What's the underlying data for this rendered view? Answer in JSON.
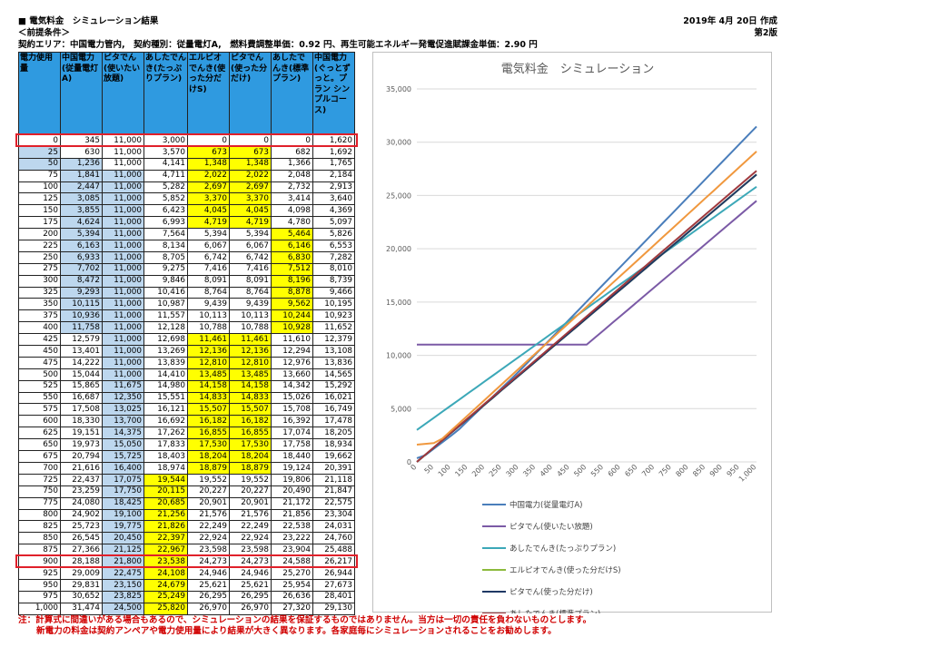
{
  "header": {
    "title": "■ 電気料金　シミュレーション結果",
    "date": "2019年 4月 20日 作成",
    "conditions_label": "＜前提条件＞",
    "version": "第2版",
    "contract": "契約エリア：中国電力管内,　契約種別：従量電灯A,　燃料費調整単価：0.92 円、再生可能エネルギー発電促進賦課金単価：2.90 円"
  },
  "table": {
    "headers": [
      "電力使用量",
      "中国電力(従量電灯A)",
      "ピタでん(使いたい放題)",
      "あしたでんき(たっぷりプラン)",
      "エルピオでんき(使った分だけS)",
      "ピタでん(使った分だけ)",
      "あしたでんき(標準プラン)",
      "中国電力(ぐっとずっと。プラン シンプルコース)"
    ],
    "rows": [
      [
        "0",
        "345",
        "11,000",
        "3,000",
        "0",
        "0",
        "0",
        "1,620"
      ],
      [
        "25",
        "630",
        "11,000",
        "3,570",
        "673",
        "673",
        "682",
        "1,692"
      ],
      [
        "50",
        "1,236",
        "11,000",
        "4,141",
        "1,348",
        "1,348",
        "1,366",
        "1,765"
      ],
      [
        "75",
        "1,841",
        "11,000",
        "4,711",
        "2,022",
        "2,022",
        "2,048",
        "2,184"
      ],
      [
        "100",
        "2,447",
        "11,000",
        "5,282",
        "2,697",
        "2,697",
        "2,732",
        "2,913"
      ],
      [
        "125",
        "3,085",
        "11,000",
        "5,852",
        "3,370",
        "3,370",
        "3,414",
        "3,640"
      ],
      [
        "150",
        "3,855",
        "11,000",
        "6,423",
        "4,045",
        "4,045",
        "4,098",
        "4,369"
      ],
      [
        "175",
        "4,624",
        "11,000",
        "6,993",
        "4,719",
        "4,719",
        "4,780",
        "5,097"
      ],
      [
        "200",
        "5,394",
        "11,000",
        "7,564",
        "5,394",
        "5,394",
        "5,464",
        "5,826"
      ],
      [
        "225",
        "6,163",
        "11,000",
        "8,134",
        "6,067",
        "6,067",
        "6,146",
        "6,553"
      ],
      [
        "250",
        "6,933",
        "11,000",
        "8,705",
        "6,742",
        "6,742",
        "6,830",
        "7,282"
      ],
      [
        "275",
        "7,702",
        "11,000",
        "9,275",
        "7,416",
        "7,416",
        "7,512",
        "8,010"
      ],
      [
        "300",
        "8,472",
        "11,000",
        "9,846",
        "8,091",
        "8,091",
        "8,196",
        "8,739"
      ],
      [
        "325",
        "9,293",
        "11,000",
        "10,416",
        "8,764",
        "8,764",
        "8,878",
        "9,466"
      ],
      [
        "350",
        "10,115",
        "11,000",
        "10,987",
        "9,439",
        "9,439",
        "9,562",
        "10,195"
      ],
      [
        "375",
        "10,936",
        "11,000",
        "11,557",
        "10,113",
        "10,113",
        "10,244",
        "10,923"
      ],
      [
        "400",
        "11,758",
        "11,000",
        "12,128",
        "10,788",
        "10,788",
        "10,928",
        "11,652"
      ],
      [
        "425",
        "12,579",
        "11,000",
        "12,698",
        "11,461",
        "11,461",
        "11,610",
        "12,379"
      ],
      [
        "450",
        "13,401",
        "11,000",
        "13,269",
        "12,136",
        "12,136",
        "12,294",
        "13,108"
      ],
      [
        "475",
        "14,222",
        "11,000",
        "13,839",
        "12,810",
        "12,810",
        "12,976",
        "13,836"
      ],
      [
        "500",
        "15,044",
        "11,000",
        "14,410",
        "13,485",
        "13,485",
        "13,660",
        "14,565"
      ],
      [
        "525",
        "15,865",
        "11,675",
        "14,980",
        "14,158",
        "14,158",
        "14,342",
        "15,292"
      ],
      [
        "550",
        "16,687",
        "12,350",
        "15,551",
        "14,833",
        "14,833",
        "15,026",
        "16,021"
      ],
      [
        "575",
        "17,508",
        "13,025",
        "16,121",
        "15,507",
        "15,507",
        "15,708",
        "16,749"
      ],
      [
        "600",
        "18,330",
        "13,700",
        "16,692",
        "16,182",
        "16,182",
        "16,392",
        "17,478"
      ],
      [
        "625",
        "19,151",
        "14,375",
        "17,262",
        "16,855",
        "16,855",
        "17,074",
        "18,205"
      ],
      [
        "650",
        "19,973",
        "15,050",
        "17,833",
        "17,530",
        "17,530",
        "17,758",
        "18,934"
      ],
      [
        "675",
        "20,794",
        "15,725",
        "18,403",
        "18,204",
        "18,204",
        "18,440",
        "19,662"
      ],
      [
        "700",
        "21,616",
        "16,400",
        "18,974",
        "18,879",
        "18,879",
        "19,124",
        "20,391"
      ],
      [
        "725",
        "22,437",
        "17,075",
        "19,544",
        "19,552",
        "19,552",
        "19,806",
        "21,118"
      ],
      [
        "750",
        "23,259",
        "17,750",
        "20,115",
        "20,227",
        "20,227",
        "20,490",
        "21,847"
      ],
      [
        "775",
        "24,080",
        "18,425",
        "20,685",
        "20,901",
        "20,901",
        "21,172",
        "22,575"
      ],
      [
        "800",
        "24,902",
        "19,100",
        "21,256",
        "21,576",
        "21,576",
        "21,856",
        "23,304"
      ],
      [
        "825",
        "25,723",
        "19,775",
        "21,826",
        "22,249",
        "22,249",
        "22,538",
        "24,031"
      ],
      [
        "850",
        "26,545",
        "20,450",
        "22,397",
        "22,924",
        "22,924",
        "23,222",
        "24,760"
      ],
      [
        "875",
        "27,366",
        "21,125",
        "22,967",
        "23,598",
        "23,598",
        "23,904",
        "25,488"
      ],
      [
        "900",
        "28,188",
        "21,800",
        "23,538",
        "24,273",
        "24,273",
        "24,588",
        "26,217"
      ],
      [
        "925",
        "29,009",
        "22,475",
        "24,108",
        "24,946",
        "24,946",
        "25,270",
        "26,944"
      ],
      [
        "950",
        "29,831",
        "23,150",
        "24,679",
        "25,621",
        "25,621",
        "25,954",
        "27,673"
      ],
      [
        "975",
        "30,652",
        "23,825",
        "25,249",
        "26,295",
        "26,295",
        "26,636",
        "28,401"
      ],
      [
        "1,000",
        "31,474",
        "24,500",
        "25,820",
        "26,970",
        "26,970",
        "27,320",
        "29,130"
      ]
    ],
    "highlight": {
      "blue": [
        [
          1,
          0
        ],
        [
          2,
          0
        ],
        [
          2,
          1
        ],
        [
          3,
          1
        ],
        [
          3,
          2
        ],
        [
          4,
          1
        ],
        [
          4,
          2
        ],
        [
          5,
          1
        ],
        [
          5,
          2
        ],
        [
          6,
          1
        ],
        [
          6,
          2
        ],
        [
          7,
          1
        ],
        [
          7,
          2
        ],
        [
          8,
          1
        ],
        [
          8,
          2
        ],
        [
          9,
          1
        ],
        [
          9,
          2
        ],
        [
          10,
          1
        ],
        [
          10,
          2
        ],
        [
          11,
          1
        ],
        [
          11,
          2
        ],
        [
          12,
          1
        ],
        [
          12,
          2
        ],
        [
          13,
          1
        ],
        [
          13,
          2
        ],
        [
          14,
          1
        ],
        [
          14,
          2
        ],
        [
          15,
          1
        ],
        [
          15,
          2
        ],
        [
          16,
          1
        ],
        [
          16,
          2
        ],
        [
          17,
          2
        ],
        [
          18,
          2
        ],
        [
          19,
          2
        ],
        [
          20,
          2
        ],
        [
          21,
          2
        ],
        [
          22,
          2
        ],
        [
          23,
          2
        ],
        [
          24,
          2
        ],
        [
          25,
          2
        ],
        [
          26,
          2
        ],
        [
          27,
          2
        ],
        [
          28,
          2
        ],
        [
          29,
          2
        ],
        [
          30,
          2
        ],
        [
          31,
          2
        ],
        [
          32,
          2
        ],
        [
          33,
          2
        ],
        [
          34,
          2
        ],
        [
          35,
          2
        ],
        [
          36,
          2
        ],
        [
          37,
          2
        ],
        [
          38,
          2
        ],
        [
          39,
          2
        ],
        [
          40,
          2
        ]
      ],
      "yellow": [
        [
          1,
          4
        ],
        [
          1,
          5
        ],
        [
          2,
          4
        ],
        [
          2,
          5
        ],
        [
          3,
          4
        ],
        [
          3,
          5
        ],
        [
          4,
          4
        ],
        [
          4,
          5
        ],
        [
          5,
          4
        ],
        [
          5,
          5
        ],
        [
          6,
          4
        ],
        [
          6,
          5
        ],
        [
          7,
          4
        ],
        [
          7,
          5
        ],
        [
          8,
          6
        ],
        [
          9,
          6
        ],
        [
          10,
          6
        ],
        [
          11,
          6
        ],
        [
          12,
          6
        ],
        [
          13,
          6
        ],
        [
          14,
          6
        ],
        [
          15,
          6
        ],
        [
          16,
          6
        ],
        [
          17,
          4
        ],
        [
          17,
          5
        ],
        [
          18,
          4
        ],
        [
          18,
          5
        ],
        [
          19,
          4
        ],
        [
          19,
          5
        ],
        [
          20,
          4
        ],
        [
          20,
          5
        ],
        [
          21,
          4
        ],
        [
          21,
          5
        ],
        [
          22,
          4
        ],
        [
          22,
          5
        ],
        [
          23,
          4
        ],
        [
          23,
          5
        ],
        [
          24,
          4
        ],
        [
          24,
          5
        ],
        [
          25,
          4
        ],
        [
          25,
          5
        ],
        [
          26,
          4
        ],
        [
          26,
          5
        ],
        [
          27,
          4
        ],
        [
          27,
          5
        ],
        [
          28,
          4
        ],
        [
          28,
          5
        ],
        [
          29,
          3
        ],
        [
          30,
          3
        ],
        [
          31,
          3
        ],
        [
          32,
          3
        ],
        [
          33,
          3
        ],
        [
          34,
          3
        ],
        [
          35,
          3
        ],
        [
          36,
          3
        ],
        [
          37,
          3
        ],
        [
          38,
          3
        ],
        [
          39,
          3
        ],
        [
          40,
          3
        ]
      ],
      "red_rows": [
        0,
        36
      ]
    }
  },
  "chart_data": {
    "type": "line",
    "title": "電気料金　シミュレーション",
    "xlabel": "",
    "ylabel": "",
    "x": [
      0,
      25,
      50,
      75,
      100,
      125,
      150,
      175,
      200,
      225,
      250,
      275,
      300,
      325,
      350,
      375,
      400,
      425,
      450,
      475,
      500,
      525,
      550,
      575,
      600,
      625,
      650,
      675,
      700,
      725,
      750,
      775,
      800,
      825,
      850,
      875,
      900,
      925,
      950,
      975,
      1000
    ],
    "xticks": [
      "0",
      "50",
      "100",
      "150",
      "200",
      "250",
      "300",
      "350",
      "400",
      "450",
      "500",
      "550",
      "600",
      "650",
      "700",
      "750",
      "800",
      "850",
      "900",
      "950",
      "1,000"
    ],
    "xtick_values": [
      0,
      50,
      100,
      150,
      200,
      250,
      300,
      350,
      400,
      450,
      500,
      550,
      600,
      650,
      700,
      750,
      800,
      850,
      900,
      950,
      1000
    ],
    "ylim": [
      0,
      35000
    ],
    "yticks": [
      "0",
      "5,000",
      "10,000",
      "15,000",
      "20,000",
      "25,000",
      "30,000",
      "35,000"
    ],
    "ytick_values": [
      0,
      5000,
      10000,
      15000,
      20000,
      25000,
      30000,
      35000
    ],
    "legend_position": "bottom",
    "series": [
      {
        "name": "中国電力(従量電灯A)",
        "color": "#4a7ebb",
        "values": [
          345,
          630,
          1236,
          1841,
          2447,
          3085,
          3855,
          4624,
          5394,
          6163,
          6933,
          7702,
          8472,
          9293,
          10115,
          10936,
          11758,
          12579,
          13401,
          14222,
          15044,
          15865,
          16687,
          17508,
          18330,
          19151,
          19973,
          20794,
          21616,
          22437,
          23259,
          24080,
          24902,
          25723,
          26545,
          27366,
          28188,
          29009,
          29831,
          30652,
          31474
        ]
      },
      {
        "name": "ピタでん(使いたい放題)",
        "color": "#7b5aa6",
        "values": [
          11000,
          11000,
          11000,
          11000,
          11000,
          11000,
          11000,
          11000,
          11000,
          11000,
          11000,
          11000,
          11000,
          11000,
          11000,
          11000,
          11000,
          11000,
          11000,
          11000,
          11000,
          11675,
          12350,
          13025,
          13700,
          14375,
          15050,
          15725,
          16400,
          17075,
          17750,
          18425,
          19100,
          19775,
          20450,
          21125,
          21800,
          22475,
          23150,
          23825,
          24500
        ]
      },
      {
        "name": "あしたでんき(たっぷりプラン)",
        "color": "#3ca8b8",
        "values": [
          3000,
          3570,
          4141,
          4711,
          5282,
          5852,
          6423,
          6993,
          7564,
          8134,
          8705,
          9275,
          9846,
          10416,
          10987,
          11557,
          12128,
          12698,
          13269,
          13839,
          14410,
          14980,
          15551,
          16121,
          16692,
          17262,
          17833,
          18403,
          18974,
          19544,
          20115,
          20685,
          21256,
          21826,
          22397,
          22967,
          23538,
          24108,
          24679,
          25249,
          25820
        ]
      },
      {
        "name": "エルピオでんき(使った分だけS)",
        "color": "#8cba3c",
        "values": [
          0,
          673,
          1348,
          2022,
          2697,
          3370,
          4045,
          4719,
          5394,
          6067,
          6742,
          7416,
          8091,
          8764,
          9439,
          10113,
          10788,
          11461,
          12136,
          12810,
          13485,
          14158,
          14833,
          15507,
          16182,
          16855,
          17530,
          18204,
          18879,
          19552,
          20227,
          20901,
          21576,
          22249,
          22924,
          23598,
          24273,
          24946,
          25621,
          26295,
          26970
        ]
      },
      {
        "name": "ピタでん(使った分だけ)",
        "color": "#1f3864",
        "values": [
          0,
          673,
          1348,
          2022,
          2697,
          3370,
          4045,
          4719,
          5394,
          6067,
          6742,
          7416,
          8091,
          8764,
          9439,
          10113,
          10788,
          11461,
          12136,
          12810,
          13485,
          14158,
          14833,
          15507,
          16182,
          16855,
          17530,
          18204,
          18879,
          19552,
          20227,
          20901,
          21576,
          22249,
          22924,
          23598,
          24273,
          24946,
          25621,
          26295,
          26970
        ]
      },
      {
        "name": "あしたでんき(標準プラン)",
        "color": "#a0393e",
        "values": [
          0,
          682,
          1366,
          2048,
          2732,
          3414,
          4098,
          4780,
          5464,
          6146,
          6830,
          7512,
          8196,
          8878,
          9562,
          10244,
          10928,
          11610,
          12294,
          12976,
          13660,
          14342,
          15026,
          15708,
          16392,
          17074,
          17758,
          18440,
          19124,
          19806,
          20490,
          21172,
          21856,
          22538,
          23222,
          23904,
          24588,
          25270,
          25954,
          26636,
          27320
        ]
      },
      {
        "name": "中国電力(ぐっとずっと。プラン シンプルコース)",
        "color": "#f0983e",
        "values": [
          1620,
          1692,
          1765,
          2184,
          2913,
          3640,
          4369,
          5097,
          5826,
          6553,
          7282,
          8010,
          8739,
          9466,
          10195,
          10923,
          11652,
          12379,
          13108,
          13836,
          14565,
          15292,
          16021,
          16749,
          17478,
          18205,
          18934,
          19662,
          20391,
          21118,
          21847,
          22575,
          23304,
          24031,
          24760,
          25488,
          26217,
          26944,
          27673,
          28401,
          29130
        ]
      }
    ]
  },
  "notes": {
    "line1": "注：計算式に間違いがある場合もあるので、シミュレーションの結果を保証するものではありません。当方は一切の責任を負わないものとします。",
    "line2": "新電力の料金は契約アンペアや電力使用量により結果が大きく異なります。各家庭毎にシミュレーションされることをお勧めします。"
  }
}
